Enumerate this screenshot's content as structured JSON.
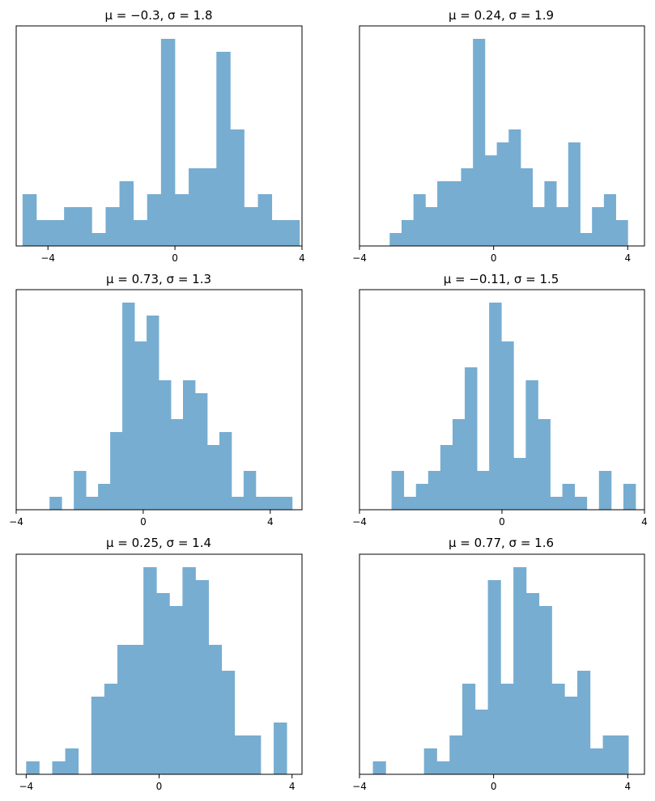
{
  "figure": {
    "background": "#ffffff",
    "bar_color": "#77add1",
    "axis_color": "#000000"
  },
  "chart_data": [
    {
      "type": "bar",
      "title": "μ = −0.3,    σ = 1.8",
      "xlim": [
        -5.0,
        4.0
      ],
      "ylim": [
        0,
        8.5
      ],
      "xticks": [
        {
          "value": -4,
          "label": "−4"
        },
        {
          "value": 0,
          "label": "0"
        },
        {
          "value": 4,
          "label": "4"
        }
      ],
      "bins": {
        "start": -4.8,
        "width": 0.436,
        "counts": [
          2,
          1,
          1,
          1.5,
          1.5,
          0.5,
          1.5,
          2.5,
          1,
          2,
          8,
          2,
          3,
          3,
          7.5,
          4.5,
          1.5,
          2,
          1,
          1
        ]
      }
    },
    {
      "type": "bar",
      "title": "μ = 0.24,    σ = 1.9",
      "xlim": [
        -4.0,
        4.5
      ],
      "ylim": [
        0,
        8.5
      ],
      "xticks": [
        {
          "value": -4,
          "label": "−4"
        },
        {
          "value": 0,
          "label": "0"
        },
        {
          "value": 4,
          "label": "4"
        }
      ],
      "bins": {
        "start": -3.1,
        "width": 0.355,
        "counts": [
          0.5,
          1,
          2,
          1.5,
          2.5,
          2.5,
          3,
          8,
          3.5,
          4,
          4.5,
          3,
          1.5,
          2.5,
          1.5,
          4,
          0.5,
          1.5,
          2,
          1
        ]
      }
    },
    {
      "type": "bar",
      "title": "μ = 0.73,    σ = 1.3",
      "xlim": [
        -4.0,
        5.0
      ],
      "ylim": [
        0,
        8.5
      ],
      "xticks": [
        {
          "value": -4,
          "label": "−4"
        },
        {
          "value": 0,
          "label": "0"
        },
        {
          "value": 4,
          "label": "4"
        }
      ],
      "bins": {
        "start": -2.95,
        "width": 0.382,
        "counts": [
          0.5,
          0,
          1.5,
          0.5,
          1,
          3,
          8,
          6.5,
          7.5,
          5,
          3.5,
          5,
          4.5,
          2.5,
          3,
          0.5,
          1.5,
          0.5,
          0.5,
          0.5
        ]
      }
    },
    {
      "type": "bar",
      "title": "μ = −0.11,    σ = 1.5",
      "xlim": [
        -4.0,
        4.0
      ],
      "ylim": [
        0,
        8.5
      ],
      "xticks": [
        {
          "value": -4,
          "label": "−4"
        },
        {
          "value": 0,
          "label": "0"
        },
        {
          "value": 4,
          "label": "4"
        }
      ],
      "bins": {
        "start": -3.1,
        "width": 0.3425,
        "counts": [
          1.5,
          0.5,
          1,
          1.5,
          2.5,
          3.5,
          5.5,
          1.5,
          8,
          6.5,
          2,
          5,
          3.5,
          0.5,
          1,
          0.5,
          0,
          1.5,
          0,
          1
        ]
      }
    },
    {
      "type": "bar",
      "title": "μ = 0.25,    σ = 1.4",
      "xlim": [
        -4.3,
        4.3
      ],
      "ylim": [
        0,
        8.5
      ],
      "xticks": [
        {
          "value": -4,
          "label": "−4"
        },
        {
          "value": 0,
          "label": "0"
        },
        {
          "value": 4,
          "label": "4"
        }
      ],
      "bins": {
        "start": -4.0,
        "width": 0.392,
        "counts": [
          0.5,
          0,
          0.5,
          1,
          0,
          3,
          3.5,
          5,
          5,
          8,
          7,
          6.5,
          8,
          7.5,
          5,
          4,
          1.5,
          1.5,
          0,
          2
        ]
      }
    },
    {
      "type": "bar",
      "title": "μ = 0.77,    σ = 1.6",
      "xlim": [
        -4.0,
        4.5
      ],
      "ylim": [
        0,
        8.5
      ],
      "xticks": [
        {
          "value": -4,
          "label": "−4"
        },
        {
          "value": 0,
          "label": "0"
        },
        {
          "value": 4,
          "label": "4"
        }
      ],
      "bins": {
        "start": -3.6,
        "width": 0.381,
        "counts": [
          0.5,
          0,
          0,
          0,
          1,
          0.5,
          1.5,
          3.5,
          2.5,
          7.5,
          3.5,
          8,
          7,
          6.5,
          3.5,
          3,
          4,
          1,
          1.5,
          1.5
        ]
      }
    }
  ]
}
